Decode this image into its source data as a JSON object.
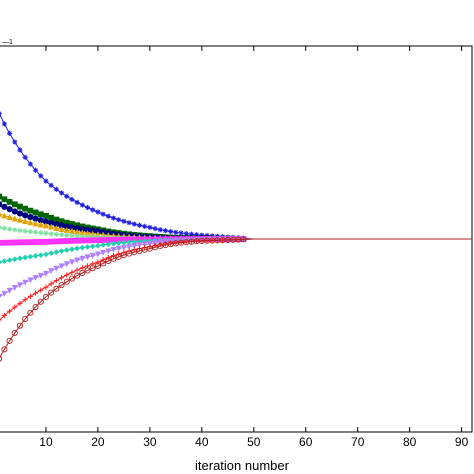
{
  "chart_data": {
    "type": "line",
    "title": "",
    "xlabel": "iteration number",
    "ylabel": "",
    "corner_note": "—1",
    "xlim": [
      0,
      92
    ],
    "ylim": [
      -1,
      1
    ],
    "xticks": [
      10,
      20,
      30,
      40,
      50,
      60,
      70,
      80,
      90
    ],
    "xtick_labels": [
      "10",
      "20",
      "30",
      "40",
      "50",
      "60",
      "70",
      "80",
      "90"
    ],
    "grid": false,
    "legend": "none",
    "converged_value": 0.0,
    "series": [
      {
        "marker": "asterisk",
        "color": "#1f1fe0",
        "x": [
          1,
          10,
          20,
          30,
          40,
          50,
          60,
          70,
          80,
          90
        ],
        "y": [
          0.65,
          0.3,
          0.14,
          0.06,
          0.02,
          0.0,
          0.0,
          0.0,
          0.0,
          0.0
        ]
      },
      {
        "marker": "square",
        "color": "#006400",
        "x": [
          1,
          10,
          20,
          30,
          40,
          50,
          60,
          70,
          80,
          90
        ],
        "y": [
          0.22,
          0.12,
          0.05,
          0.015,
          0.003,
          0.0,
          0.0,
          0.0,
          0.0,
          0.0
        ]
      },
      {
        "marker": "circle-filled",
        "color": "#000080",
        "x": [
          1,
          10,
          20,
          30,
          40,
          50,
          60,
          70,
          80,
          90
        ],
        "y": [
          0.18,
          0.09,
          0.04,
          0.01,
          0.002,
          0.0,
          0.0,
          0.0,
          0.0,
          0.0
        ]
      },
      {
        "marker": "triangle",
        "color": "#e0a000",
        "x": [
          1,
          10,
          20,
          30,
          40,
          50,
          60,
          70,
          80,
          90
        ],
        "y": [
          0.13,
          0.07,
          0.025,
          0.008,
          0.0,
          0.0,
          0.0,
          0.0,
          0.0,
          0.0
        ]
      },
      {
        "marker": "asterisk",
        "color": "#80e0a0",
        "x": [
          1,
          10,
          20,
          30,
          40,
          50,
          60,
          70,
          80,
          90
        ],
        "y": [
          0.06,
          0.03,
          0.01,
          0.003,
          0.0,
          0.0,
          0.0,
          0.0,
          0.0,
          0.0
        ]
      },
      {
        "marker": "square",
        "color": "#ff33ff",
        "x": [
          1,
          10,
          20,
          30,
          40,
          50,
          60,
          70,
          80,
          90
        ],
        "y": [
          -0.02,
          -0.015,
          -0.006,
          -0.002,
          0.0,
          0.0,
          0.0,
          0.0,
          0.0,
          0.0
        ]
      },
      {
        "marker": "diamond",
        "color": "#20d0b0",
        "x": [
          1,
          10,
          20,
          30,
          40,
          50,
          60,
          70,
          80,
          90
        ],
        "y": [
          -0.12,
          -0.08,
          -0.035,
          -0.01,
          -0.002,
          0.0,
          0.0,
          0.0,
          0.0,
          0.0
        ]
      },
      {
        "marker": "triangle-down",
        "color": "#b080ff",
        "x": [
          1,
          10,
          20,
          30,
          40,
          50,
          60,
          70,
          80,
          90
        ],
        "y": [
          -0.3,
          -0.18,
          -0.08,
          -0.025,
          -0.005,
          0.0,
          0.0,
          0.0,
          0.0,
          0.0
        ]
      },
      {
        "marker": "plus",
        "color": "#ff2020",
        "x": [
          1,
          10,
          20,
          30,
          40,
          50,
          60,
          70,
          80,
          90
        ],
        "y": [
          -0.42,
          -0.25,
          -0.12,
          -0.04,
          -0.008,
          0.0,
          0.0,
          0.0,
          0.0,
          0.0
        ]
      },
      {
        "marker": "circle-open",
        "color": "#b02020",
        "x": [
          1,
          10,
          20,
          30,
          40,
          50,
          60,
          70,
          80,
          90
        ],
        "y": [
          -0.62,
          -0.3,
          -0.14,
          -0.05,
          -0.01,
          0.0,
          0.0,
          0.0,
          0.0,
          0.0
        ]
      }
    ]
  }
}
